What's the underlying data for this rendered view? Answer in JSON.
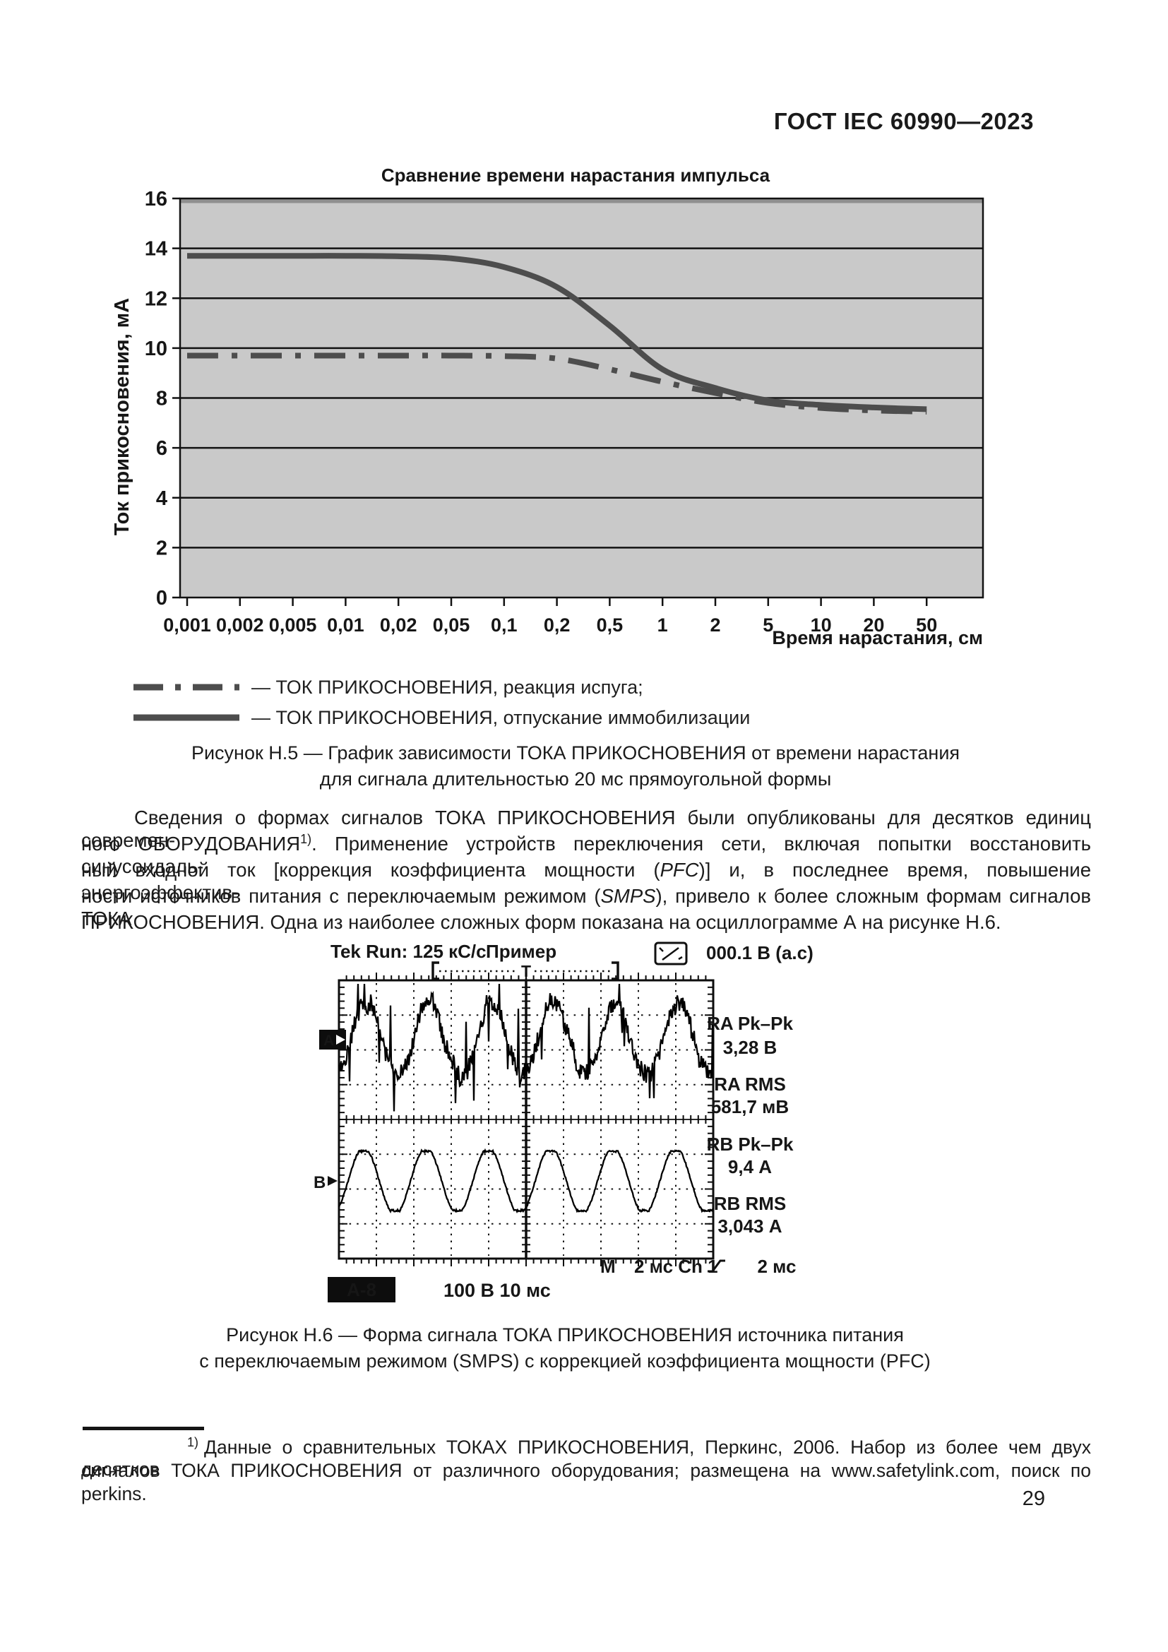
{
  "header": {
    "title": "ГОСТ IEC 60990—2023"
  },
  "chart_data": {
    "type": "line",
    "title": "Сравнение времени нарастания импульса",
    "xlabel": "Время нарастания, см",
    "ylabel": "Ток прикосновения, мА",
    "x_scale": "logarithmic-categorical",
    "categories": [
      "0,001",
      "0,002",
      "0,005",
      "0,01",
      "0,02",
      "0,05",
      "0,1",
      "0,2",
      "0,5",
      "1",
      "2",
      "5",
      "10",
      "20",
      "50"
    ],
    "y_ticks": [
      0,
      2,
      4,
      6,
      8,
      10,
      12,
      14,
      16
    ],
    "ylim": [
      0,
      16
    ],
    "grid": "horizontal",
    "legend_position": "bottom-left",
    "plot_bg": "#c9c9c9",
    "line_color": "#4d4d4d",
    "series": [
      {
        "name": "ТОК ПРИКОСНОВЕНИЯ, реакция испуга",
        "style": "dashdot",
        "values": [
          9.7,
          9.7,
          9.7,
          9.7,
          9.7,
          9.7,
          9.68,
          9.58,
          9.15,
          8.65,
          8.2,
          7.8,
          7.6,
          7.5,
          7.45
        ]
      },
      {
        "name": "ТОК ПРИКОСНОВЕНИЯ, отпускание иммобилизации",
        "style": "solid",
        "values": [
          13.7,
          13.7,
          13.7,
          13.7,
          13.68,
          13.6,
          13.25,
          12.45,
          10.9,
          9.15,
          8.4,
          7.9,
          7.72,
          7.62,
          7.55
        ]
      }
    ]
  },
  "figure_h5": {
    "legend_items": [
      {
        "style": "dashdot",
        "label": "— ТОК ПРИКОСНОВЕНИЯ, реакция испуга;"
      },
      {
        "style": "solid",
        "label": "— ТОК ПРИКОСНОВЕНИЯ, отпускание иммобилизации"
      }
    ],
    "caption_line1": "Рисунок Н.5 — График зависимости ТОКА ПРИКОСНОВЕНИЯ от времени нарастания",
    "caption_line2": "для сигнала длительностью 20 мс прямоугольной формы"
  },
  "body_text": {
    "line1": "Сведения о формах сигналов ТОКА ПРИКОСНОВЕНИЯ были опубликованы для десятков единиц современ-",
    "line2_pre": "ного ОБОРУДОВАНИЯ",
    "line2_sup": "1)",
    "line2_post": ". Применение устройств переключения сети, включая попытки восстановить синусоидаль-",
    "line3_pre": "ный входной ток [коррекция коэффициента мощности (",
    "line3_italic": "PFC",
    "line3_post": ")] и, в последнее время, повышение энергоэффектив-",
    "line4_pre": "ности источников питания с переключаемым режимом (",
    "line4_italic": "SMPS",
    "line4_post": "), привело к более сложным формам сигналов ТОКА",
    "line5": "ПРИКОСНОВЕНИЯ. Одна из наиболее сложных форм показана на осциллограмме А на рисунке Н.6."
  },
  "oscillogram": {
    "status": "Tek Run:  125 кС/с",
    "sample_label": "Пример",
    "top_right_value": "000.1 В (а.с)",
    "trigger_marker": "T",
    "channel_a": "A",
    "channel_b": "B",
    "measurements": [
      {
        "name": "RA Pk–Pk",
        "value": "3,28 В"
      },
      {
        "name": "RA RMS",
        "value": "581,7 мВ"
      },
      {
        "name": "RB Pk–Pk",
        "value": "9,4 А"
      },
      {
        "name": "RB RMS",
        "value": "3,043 А"
      }
    ],
    "m_label": "M",
    "timebase": "2 мс Ch 1",
    "timebase_right": "2 мс",
    "badge": "А-8",
    "scale_label": "100 В 10 мс"
  },
  "figure_h6": {
    "caption_line1": "Рисунок Н.6 — Форма сигнала ТОКА ПРИКОСНОВЕНИЯ источника питания",
    "caption_line2": "с переключаемым режимом (SMPS) с коррекцией коэффициента мощности (PFC)"
  },
  "footnote": {
    "marker": "1)",
    "line1": "Данные о сравнительных ТОКАХ ПРИКОСНОВЕНИЯ, Перкинс, 2006. Набор из более чем двух десятков",
    "line2": "сигналов ТОКА ПРИКОСНОВЕНИЯ от различного оборудования; размещена на www.safetylink.com, поиск по",
    "line3": "perkins."
  },
  "page_number": "29"
}
